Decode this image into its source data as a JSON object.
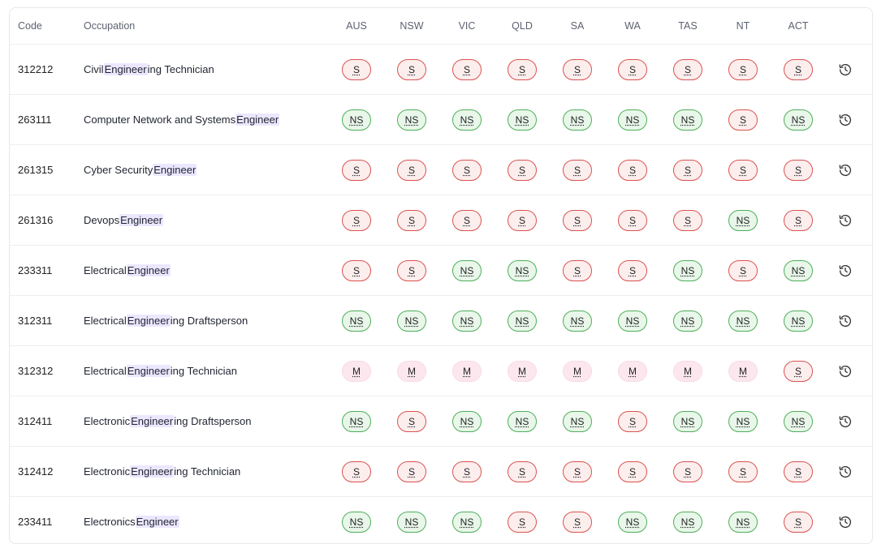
{
  "columns": {
    "code": "Code",
    "occupation": "Occupation",
    "states": [
      "AUS",
      "NSW",
      "VIC",
      "QLD",
      "SA",
      "WA",
      "TAS",
      "NT",
      "ACT"
    ]
  },
  "colors": {
    "S": "#d9534f",
    "NS": "#4fae5a",
    "M": "#fce7ee",
    "highlight": "#ece7ff"
  },
  "icons": {
    "history": "history-icon"
  },
  "rows": [
    {
      "code": "312212",
      "occ": [
        [
          "Civil ",
          false
        ],
        [
          "Engineer",
          true
        ],
        [
          "ing Technician",
          false
        ]
      ],
      "status": [
        "S",
        "S",
        "S",
        "S",
        "S",
        "S",
        "S",
        "S",
        "S"
      ]
    },
    {
      "code": "263111",
      "occ": [
        [
          "Computer Network and Systems ",
          false
        ],
        [
          "Engineer",
          true
        ]
      ],
      "status": [
        "NS",
        "NS",
        "NS",
        "NS",
        "NS",
        "NS",
        "NS",
        "S",
        "NS"
      ]
    },
    {
      "code": "261315",
      "occ": [
        [
          "Cyber Security ",
          false
        ],
        [
          "Engineer",
          true
        ]
      ],
      "status": [
        "S",
        "S",
        "S",
        "S",
        "S",
        "S",
        "S",
        "S",
        "S"
      ]
    },
    {
      "code": "261316",
      "occ": [
        [
          "Devops ",
          false
        ],
        [
          "Engineer",
          true
        ]
      ],
      "status": [
        "S",
        "S",
        "S",
        "S",
        "S",
        "S",
        "S",
        "NS",
        "S"
      ]
    },
    {
      "code": "233311",
      "occ": [
        [
          "Electrical ",
          false
        ],
        [
          "Engineer",
          true
        ]
      ],
      "status": [
        "S",
        "S",
        "NS",
        "NS",
        "S",
        "S",
        "NS",
        "S",
        "NS"
      ]
    },
    {
      "code": "312311",
      "occ": [
        [
          "Electrical ",
          false
        ],
        [
          "Engineer",
          true
        ],
        [
          "ing Draftsperson",
          false
        ]
      ],
      "status": [
        "NS",
        "NS",
        "NS",
        "NS",
        "NS",
        "NS",
        "NS",
        "NS",
        "NS"
      ]
    },
    {
      "code": "312312",
      "occ": [
        [
          "Electrical ",
          false
        ],
        [
          "Engineer",
          true
        ],
        [
          "ing Technician",
          false
        ]
      ],
      "status": [
        "M",
        "M",
        "M",
        "M",
        "M",
        "M",
        "M",
        "M",
        "S"
      ]
    },
    {
      "code": "312411",
      "occ": [
        [
          "Electronic ",
          false
        ],
        [
          "Engineer",
          true
        ],
        [
          "ing Draftsperson",
          false
        ]
      ],
      "status": [
        "NS",
        "S",
        "NS",
        "NS",
        "NS",
        "S",
        "NS",
        "NS",
        "NS"
      ]
    },
    {
      "code": "312412",
      "occ": [
        [
          "Electronic ",
          false
        ],
        [
          "Engineer",
          true
        ],
        [
          "ing Technician",
          false
        ]
      ],
      "status": [
        "S",
        "S",
        "S",
        "S",
        "S",
        "S",
        "S",
        "S",
        "S"
      ]
    },
    {
      "code": "233411",
      "occ": [
        [
          "Electronics ",
          false
        ],
        [
          "Engineer",
          true
        ]
      ],
      "status": [
        "NS",
        "NS",
        "NS",
        "S",
        "S",
        "NS",
        "NS",
        "NS",
        "S"
      ]
    }
  ]
}
